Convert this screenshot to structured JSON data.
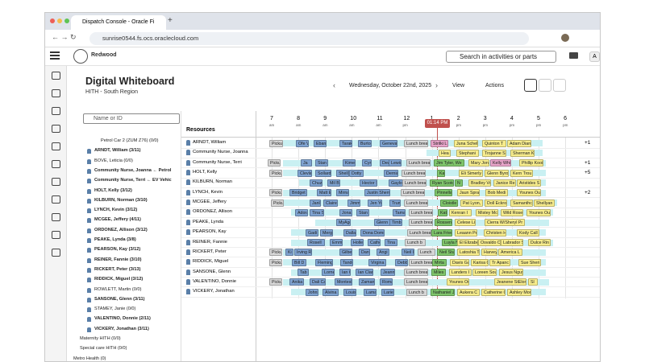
{
  "browser": {
    "tab_title": "Dispatch Console - Oracle Fi",
    "url": "sunrise0544.fs.ocs.oraclecloud.com"
  },
  "header": {
    "logo": "Redwood",
    "search_placeholder": "Search in activities or parts",
    "avatar": "A"
  },
  "page": {
    "title": "Digital Whiteboard",
    "subtitle": "HITH - South Region",
    "date": "Wednesday, October 22nd, 2025",
    "view": "View",
    "actions": "Actions"
  },
  "tree": {
    "search_placeholder": "Name or ID",
    "items": [
      "Petrol Car 2 (ZUM Z76) (0/0)",
      "ARNDT, William (3/11)",
      "BOVE, Leticia (0/0)",
      "Community Nurse, Joanna ← Petrol",
      "Community Nurse, Terri ← EV Vehic",
      "HOLT, Kelly (3/12)",
      "KILBURN, Norman (3/10)",
      "LYNCH, Kevin (3/12)",
      "MCGEE, Jeffery (4/11)",
      "ORDONEZ, Allison (3/12)",
      "PEAKE, Lynda (3/8)",
      "PEARSON, Kay (3/12)",
      "REINER, Fannie (3/10)",
      "RICKERT, Peter (3/13)",
      "RIDDICK, Miguel (3/12)",
      "ROWLETT, Martin (0/0)",
      "SANSONE, Glenn (3/11)",
      "STAMEY, Janie (0/0)",
      "VALENTINO, Donnie (2/11)",
      "VICKERY, Jonathan (3/11)",
      "Maternity HITH (0/0)",
      "Special care HITH (0/0)",
      "Metro Health (0)"
    ]
  },
  "grid": {
    "resources_header": "Resources",
    "current_time": "01:14 PM",
    "hours": [
      {
        "hour": "7",
        "period": "am"
      },
      {
        "hour": "8",
        "period": "am"
      },
      {
        "hour": "9",
        "period": "am"
      },
      {
        "hour": "10",
        "period": "am"
      },
      {
        "hour": "11",
        "period": "am"
      },
      {
        "hour": "12",
        "period": "pm"
      },
      {
        "hour": "1",
        "period": "pm"
      },
      {
        "hour": "2",
        "period": "pm"
      },
      {
        "hour": "3",
        "period": "pm"
      },
      {
        "hour": "4",
        "period": "pm"
      },
      {
        "hour": "5",
        "period": "pm"
      },
      {
        "hour": "6",
        "period": "pm"
      }
    ],
    "rows": [
      {
        "name": "ARNDT, William",
        "more": "+1",
        "activities": [
          "Pickup",
          "Ofe V",
          "Ebang",
          "Tarak",
          "Burton",
          "Geneva",
          "Lunch brea",
          "Strilki L",
          "Juna Schel",
          "Quinton T",
          "Adam Dian"
        ]
      },
      {
        "name": "Community Nurse, Joanna",
        "activities": [
          "Hea",
          "Stephani",
          "Trojanne S",
          "Sherman K"
        ]
      },
      {
        "name": "Community Nurse, Terri",
        "more": "+1",
        "activities": [
          "Pickup",
          "Ja",
          "Stan",
          "Kimel",
          "Cyrp",
          "Dewua",
          "Lewis",
          "Lunch brea",
          "Jim Tyler, We",
          "Mary Jone",
          "Kelly Whit",
          "Phillip Kooi"
        ]
      },
      {
        "name": "HOLT, Kelly",
        "more": "+5",
        "activities": [
          "Pickup",
          "Clevla",
          "Sollard F",
          "Shelli",
          "Dotty N",
          "Dernia",
          "Lunch brea",
          "Ka",
          "Eli Simerly",
          "Glenn Byro",
          "Kern Trou"
        ]
      },
      {
        "name": "KILBURN, Norman",
        "activities": [
          "Chuzz",
          "Mil Bill",
          "Hector S",
          "Gaylo",
          "Lunch brea",
          "Ryan Scoto",
          "N",
          "Bradley Vo",
          "Janice Re",
          "Aristides S"
        ]
      },
      {
        "name": "LYNCH, Kevin",
        "more": "+2",
        "activities": [
          "Pickup",
          "Bridget",
          "Matt E",
          "Mirna",
          "Justin Sherry T",
          "Lunch brea",
          "Pinnella",
          "Jaun Spral",
          "Bob Medi",
          "Younes Ou"
        ]
      },
      {
        "name": "MCGEE, Jeffery",
        "activities": [
          "Pickup",
          "Janl",
          "Claire F",
          "Jimm",
          "Jen Yo",
          "Trum",
          "Lunch brea",
          "Cloistle",
          "Pat Lyon, P",
          "Doll Eckro",
          "Samanthc",
          "Shellyan"
        ]
      },
      {
        "name": "ORDONEZ, Allison",
        "activities": [
          "Adora",
          "Tina S",
          "Jona",
          "Stan B",
          "Tama",
          "Lunch bread",
          "Kat",
          "Kenran I",
          "Mistey Mc",
          "Wild Roser",
          "Younes Ou"
        ]
      },
      {
        "name": "PEAKE, Lynda",
        "activities": [
          "MyAge",
          "Glenn Dia",
          "Timb",
          "Lunch brea",
          "Rossent",
          "Celese Li",
          "Cierra W/Sheryl Pr"
        ]
      },
      {
        "name": "PEARSON, Kay",
        "activities": [
          "Gadi",
          "Mergi",
          "Dalla",
          "Dona Domnio",
          "Lunch brea",
          "Lara Friend",
          "Leaann Pel",
          "Christen H",
          "Kody Call"
        ]
      },
      {
        "name": "REINER, Fannie",
        "activities": [
          "Rosell",
          "Emmi",
          "Holle",
          "Cathe",
          "Tina J",
          "Lunch b",
          "Luyla Ng",
          "El Elizabeth",
          "Osvaldo O",
          "Labrador Sr",
          "Dulce Rin"
        ]
      },
      {
        "name": "RICKERT, Peter",
        "activities": [
          "Pickup",
          "Ki",
          "Irving R",
          "Gilbe",
          "Dante",
          "Angi",
          "Neil U",
          "Lunch",
          "Neil Stu",
          "Latoshia T",
          "Harvey Al",
          "America L"
        ]
      },
      {
        "name": "RIDDICK, Miguel",
        "activities": [
          "Pickup",
          "Bill D",
          "Fleming",
          "Tando",
          "Virgina M",
          "Debbi",
          "Lunch brea",
          "Mirta",
          "Davis Ganc",
          "Karisa Ot",
          "Tr Apanc",
          "Sue Sheri"
        ]
      },
      {
        "name": "SANSONE, Glenn",
        "activities": [
          "Tab",
          "Lorne",
          "Ian C",
          "Ian Clarc",
          "Jeanne",
          "Lunch brea",
          "Miles",
          "Landers I",
          "Loreen Sou",
          "Jesus Nguy"
        ]
      },
      {
        "name": "VALENTINO, Donnie",
        "activities": [
          "Pickup",
          "Anika",
          "Dali Ca",
          "Montesb",
          "Zamani",
          "Roma",
          "Lunch brea",
          "Younes Ou",
          "Jeanene StElon",
          "Sl"
        ]
      },
      {
        "name": "VICKERY, Jonathan",
        "activities": [
          "Johns",
          "Alvina M",
          "Louis",
          "Lama",
          "Larie",
          "Lunch b",
          "Nathaniel J",
          "Aukera C",
          "Catherine C",
          "Ashley Mor"
        ]
      }
    ]
  }
}
